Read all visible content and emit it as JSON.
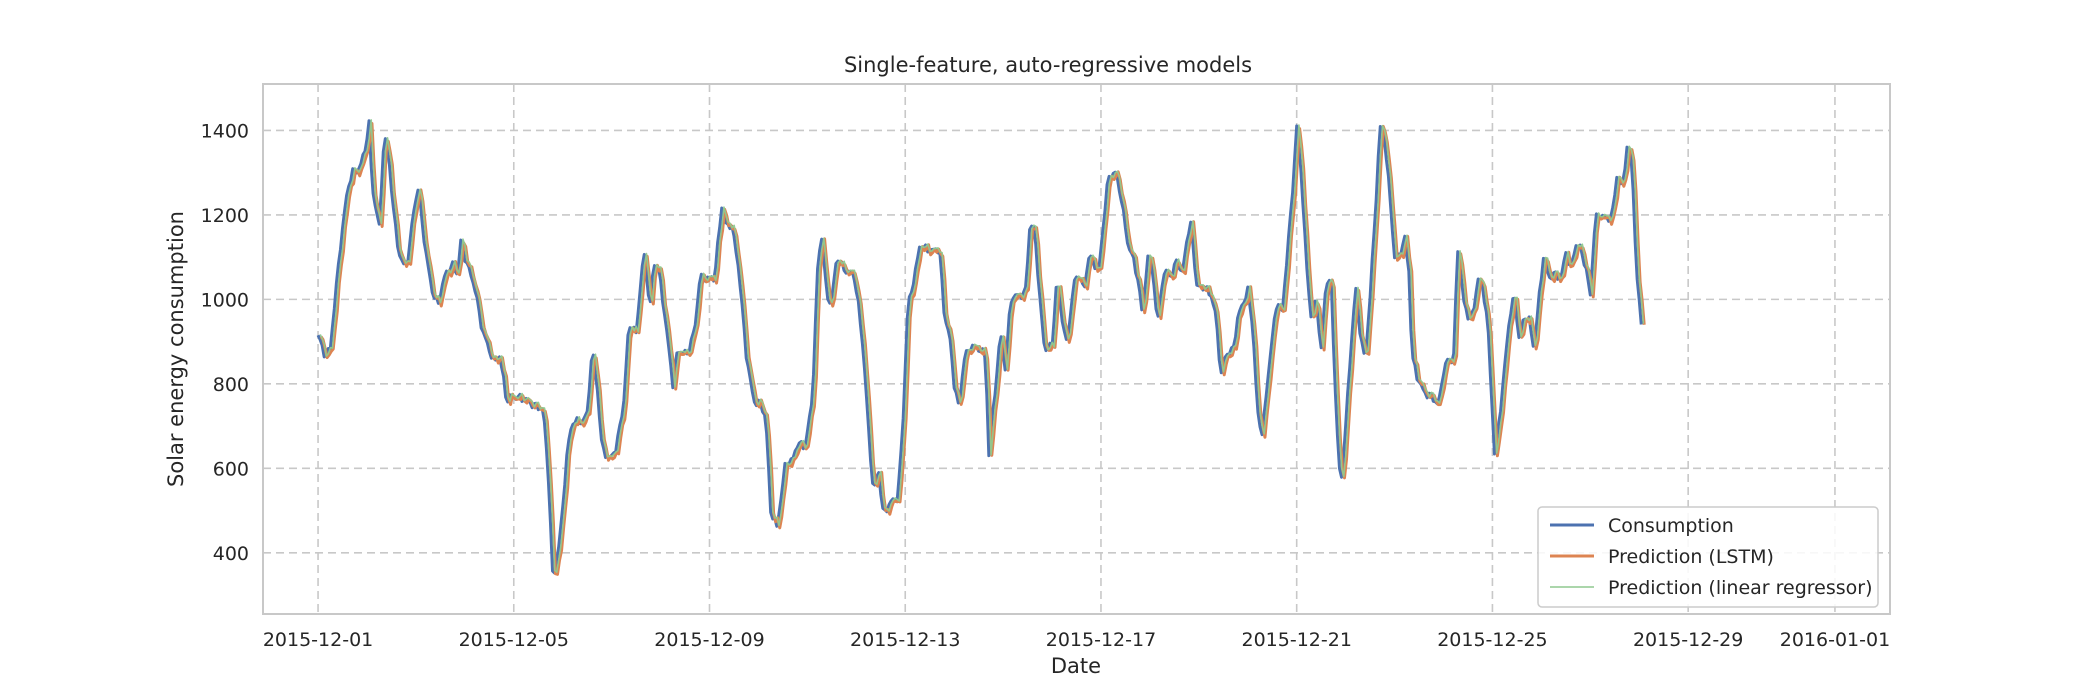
{
  "chart_data": {
    "type": "line",
    "title": "Single-feature, auto-regressive models",
    "xlabel": "Date",
    "ylabel": "Solar energy consumption",
    "x_start": "2015-12-01",
    "x_end": "2016-01-01",
    "xlim": [
      "2015-11-29T21:00",
      "2016-01-02T03:00"
    ],
    "ylim": [
      255,
      1510
    ],
    "x_ticks": [
      "2015-12-01",
      "2015-12-05",
      "2015-12-09",
      "2015-12-13",
      "2015-12-17",
      "2015-12-21",
      "2015-12-25",
      "2015-12-29",
      "2016-01-01"
    ],
    "y_ticks": [
      400,
      600,
      800,
      1000,
      1200,
      1400
    ],
    "grid": true,
    "legend_position": "bottom-right",
    "series": [
      {
        "name": "Consumption",
        "color": "#4c72b0",
        "style": "thick"
      },
      {
        "name": "Prediction (LSTM)",
        "color": "#dd8452",
        "style": "thick"
      },
      {
        "name": "Prediction (linear regressor)",
        "color": "#8fc98f",
        "style": "thin"
      }
    ],
    "keyframes_day_value": [
      [
        0.0,
        915
      ],
      [
        0.15,
        865
      ],
      [
        0.25,
        885
      ],
      [
        0.45,
        1120
      ],
      [
        0.6,
        1260
      ],
      [
        0.7,
        1300
      ],
      [
        0.85,
        1310
      ],
      [
        0.95,
        1350
      ],
      [
        1.05,
        1420
      ],
      [
        1.1,
        1270
      ],
      [
        1.25,
        1170
      ],
      [
        1.35,
        1390
      ],
      [
        1.45,
        1330
      ],
      [
        1.55,
        1200
      ],
      [
        1.65,
        1110
      ],
      [
        1.75,
        1080
      ],
      [
        1.85,
        1100
      ],
      [
        1.95,
        1210
      ],
      [
        2.05,
        1265
      ],
      [
        2.2,
        1110
      ],
      [
        2.35,
        1010
      ],
      [
        2.45,
        990
      ],
      [
        2.6,
        1060
      ],
      [
        2.75,
        1080
      ],
      [
        2.85,
        1060
      ],
      [
        2.92,
        1140
      ],
      [
        3.0,
        1100
      ],
      [
        3.2,
        1030
      ],
      [
        3.35,
        930
      ],
      [
        3.5,
        880
      ],
      [
        3.6,
        850
      ],
      [
        3.7,
        870
      ],
      [
        3.78,
        820
      ],
      [
        3.85,
        760
      ],
      [
        3.95,
        770
      ],
      [
        4.2,
        765
      ],
      [
        4.4,
        750
      ],
      [
        4.6,
        740
      ],
      [
        4.7,
        600
      ],
      [
        4.8,
        330
      ],
      [
        4.95,
        440
      ],
      [
        5.1,
        650
      ],
      [
        5.2,
        710
      ],
      [
        5.4,
        710
      ],
      [
        5.5,
        730
      ],
      [
        5.6,
        880
      ],
      [
        5.7,
        800
      ],
      [
        5.8,
        650
      ],
      [
        5.95,
        620
      ],
      [
        6.1,
        650
      ],
      [
        6.25,
        760
      ],
      [
        6.35,
        940
      ],
      [
        6.5,
        920
      ],
      [
        6.65,
        1110
      ],
      [
        6.72,
        1060
      ],
      [
        6.78,
        970
      ],
      [
        6.85,
        1080
      ],
      [
        6.95,
        1080
      ],
      [
        7.1,
        950
      ],
      [
        7.25,
        800
      ],
      [
        7.35,
        880
      ],
      [
        7.55,
        870
      ],
      [
        7.7,
        930
      ],
      [
        7.8,
        1050
      ],
      [
        8.1,
        1050
      ],
      [
        8.25,
        1220
      ],
      [
        8.35,
        1170
      ],
      [
        8.45,
        1180
      ],
      [
        8.6,
        1070
      ],
      [
        8.75,
        870
      ],
      [
        8.9,
        760
      ],
      [
        9.05,
        750
      ],
      [
        9.15,
        720
      ],
      [
        9.25,
        500
      ],
      [
        9.38,
        460
      ],
      [
        9.55,
        610
      ],
      [
        9.7,
        620
      ],
      [
        9.8,
        660
      ],
      [
        9.95,
        650
      ],
      [
        10.1,
        760
      ],
      [
        10.22,
        1100
      ],
      [
        10.3,
        1150
      ],
      [
        10.4,
        1000
      ],
      [
        10.5,
        1000
      ],
      [
        10.6,
        1100
      ],
      [
        10.75,
        1070
      ],
      [
        10.95,
        1060
      ],
      [
        11.05,
        980
      ],
      [
        11.15,
        870
      ],
      [
        11.25,
        690
      ],
      [
        11.35,
        540
      ],
      [
        11.45,
        600
      ],
      [
        11.55,
        490
      ],
      [
        11.7,
        520
      ],
      [
        11.85,
        530
      ],
      [
        11.95,
        700
      ],
      [
        12.05,
        980
      ],
      [
        12.2,
        1060
      ],
      [
        12.3,
        1130
      ],
      [
        12.4,
        1120
      ],
      [
        12.55,
        1115
      ],
      [
        12.7,
        1120
      ],
      [
        12.8,
        960
      ],
      [
        12.9,
        920
      ],
      [
        13.0,
        800
      ],
      [
        13.1,
        740
      ],
      [
        13.2,
        860
      ],
      [
        13.35,
        890
      ],
      [
        13.55,
        880
      ],
      [
        13.65,
        860
      ],
      [
        13.7,
        620
      ],
      [
        13.78,
        720
      ],
      [
        13.85,
        800
      ],
      [
        13.95,
        920
      ],
      [
        14.05,
        830
      ],
      [
        14.15,
        1000
      ],
      [
        14.3,
        1010
      ],
      [
        14.45,
        1010
      ],
      [
        14.55,
        1180
      ],
      [
        14.65,
        1160
      ],
      [
        14.75,
        1000
      ],
      [
        14.85,
        880
      ],
      [
        15.0,
        890
      ],
      [
        15.1,
        1050
      ],
      [
        15.2,
        960
      ],
      [
        15.3,
        890
      ],
      [
        15.45,
        1040
      ],
      [
        15.55,
        1060
      ],
      [
        15.65,
        1020
      ],
      [
        15.75,
        1100
      ],
      [
        15.85,
        1090
      ],
      [
        15.95,
        1060
      ],
      [
        16.05,
        1180
      ],
      [
        16.15,
        1290
      ],
      [
        16.3,
        1300
      ],
      [
        16.4,
        1250
      ],
      [
        16.55,
        1130
      ],
      [
        16.65,
        1100
      ],
      [
        16.75,
        1050
      ],
      [
        16.85,
        960
      ],
      [
        16.95,
        1100
      ],
      [
        17.05,
        1080
      ],
      [
        17.15,
        940
      ],
      [
        17.25,
        1040
      ],
      [
        17.35,
        1070
      ],
      [
        17.45,
        1050
      ],
      [
        17.55,
        1100
      ],
      [
        17.65,
        1050
      ],
      [
        17.75,
        1140
      ],
      [
        17.85,
        1180
      ],
      [
        17.95,
        1030
      ],
      [
        18.1,
        1030
      ],
      [
        18.25,
        1010
      ],
      [
        18.35,
        960
      ],
      [
        18.45,
        820
      ],
      [
        18.55,
        870
      ],
      [
        18.7,
        880
      ],
      [
        18.8,
        960
      ],
      [
        18.9,
        990
      ],
      [
        19.0,
        1020
      ],
      [
        19.1,
        940
      ],
      [
        19.2,
        730
      ],
      [
        19.3,
        680
      ],
      [
        19.45,
        860
      ],
      [
        19.6,
        1000
      ],
      [
        19.7,
        960
      ],
      [
        19.8,
        1100
      ],
      [
        19.9,
        1230
      ],
      [
        20.0,
        1410
      ],
      [
        20.1,
        1290
      ],
      [
        20.2,
        1080
      ],
      [
        20.3,
        950
      ],
      [
        20.4,
        1000
      ],
      [
        20.5,
        880
      ],
      [
        20.6,
        1040
      ],
      [
        20.7,
        1050
      ],
      [
        20.75,
        900
      ],
      [
        20.82,
        700
      ],
      [
        20.9,
        550
      ],
      [
        21.0,
        700
      ],
      [
        21.1,
        870
      ],
      [
        21.2,
        1030
      ],
      [
        21.3,
        920
      ],
      [
        21.4,
        850
      ],
      [
        21.5,
        1010
      ],
      [
        21.6,
        1190
      ],
      [
        21.7,
        1410
      ],
      [
        21.8,
        1380
      ],
      [
        21.9,
        1250
      ],
      [
        22.0,
        1100
      ],
      [
        22.1,
        1100
      ],
      [
        22.2,
        1150
      ],
      [
        22.3,
        1060
      ],
      [
        22.35,
        870
      ],
      [
        22.45,
        820
      ],
      [
        22.6,
        780
      ],
      [
        22.75,
        770
      ],
      [
        22.9,
        750
      ],
      [
        23.0,
        830
      ],
      [
        23.1,
        860
      ],
      [
        23.2,
        850
      ],
      [
        23.3,
        1140
      ],
      [
        23.4,
        1000
      ],
      [
        23.5,
        960
      ],
      [
        23.6,
        960
      ],
      [
        23.7,
        1050
      ],
      [
        23.8,
        1030
      ],
      [
        23.9,
        950
      ],
      [
        23.95,
        840
      ],
      [
        24.05,
        620
      ],
      [
        24.2,
        780
      ],
      [
        24.35,
        960
      ],
      [
        24.45,
        1010
      ],
      [
        24.55,
        900
      ],
      [
        24.65,
        960
      ],
      [
        24.75,
        950
      ],
      [
        24.85,
        880
      ],
      [
        24.95,
        1000
      ],
      [
        25.05,
        1110
      ],
      [
        25.15,
        1050
      ],
      [
        25.25,
        1060
      ],
      [
        25.4,
        1050
      ],
      [
        25.5,
        1110
      ],
      [
        25.6,
        1070
      ],
      [
        25.7,
        1130
      ],
      [
        25.8,
        1120
      ],
      [
        25.9,
        1080
      ],
      [
        26.0,
        1010
      ],
      [
        26.1,
        1190
      ],
      [
        26.2,
        1200
      ],
      [
        26.35,
        1190
      ],
      [
        26.45,
        1200
      ],
      [
        26.55,
        1300
      ],
      [
        26.65,
        1260
      ],
      [
        26.75,
        1360
      ],
      [
        26.85,
        1330
      ],
      [
        26.95,
        1050
      ],
      [
        27.05,
        940
      ]
    ]
  }
}
